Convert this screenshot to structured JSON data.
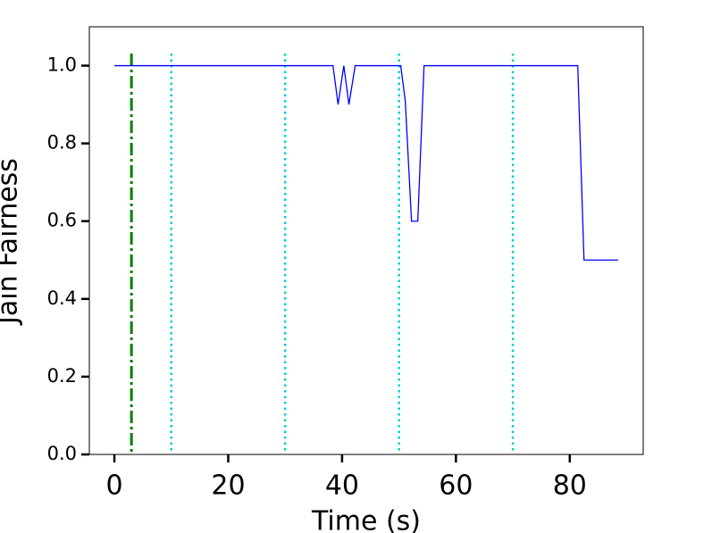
{
  "chart_data": {
    "type": "line",
    "xlabel": "Time (s)",
    "ylabel": "Jain Fairness",
    "x": [
      0,
      38.4,
      39.3,
      40.3,
      41.2,
      42.3,
      50.3,
      51.1,
      52.2,
      53.3,
      54.4,
      81.4,
      82.5,
      88.5
    ],
    "series": [
      {
        "color": "#0000ff",
        "values": [
          1.0,
          1.0,
          0.9,
          1.0,
          0.9,
          1.0,
          1.0,
          0.91,
          0.6,
          0.6,
          1.0,
          1.0,
          0.5,
          0.5
        ]
      }
    ],
    "vlines": [
      {
        "x": 3,
        "color": "#008000",
        "style": "dashdot"
      },
      {
        "x": 10,
        "color": "#00cccc",
        "style": "dotted"
      },
      {
        "x": 30,
        "color": "#00cccc",
        "style": "dotted"
      },
      {
        "x": 50,
        "color": "#00cccc",
        "style": "dotted"
      },
      {
        "x": 70,
        "color": "#00cccc",
        "style": "dotted"
      }
    ],
    "xlim": [
      -4.4,
      92.9
    ],
    "ylim": [
      0,
      1.1
    ],
    "xticks": [
      0,
      20,
      40,
      60,
      80
    ],
    "yticks": [
      {
        "value": 0,
        "label": "0.0"
      },
      0.2,
      0.4,
      0.6,
      0.8,
      {
        "value": 1,
        "label": "1.0"
      }
    ]
  }
}
